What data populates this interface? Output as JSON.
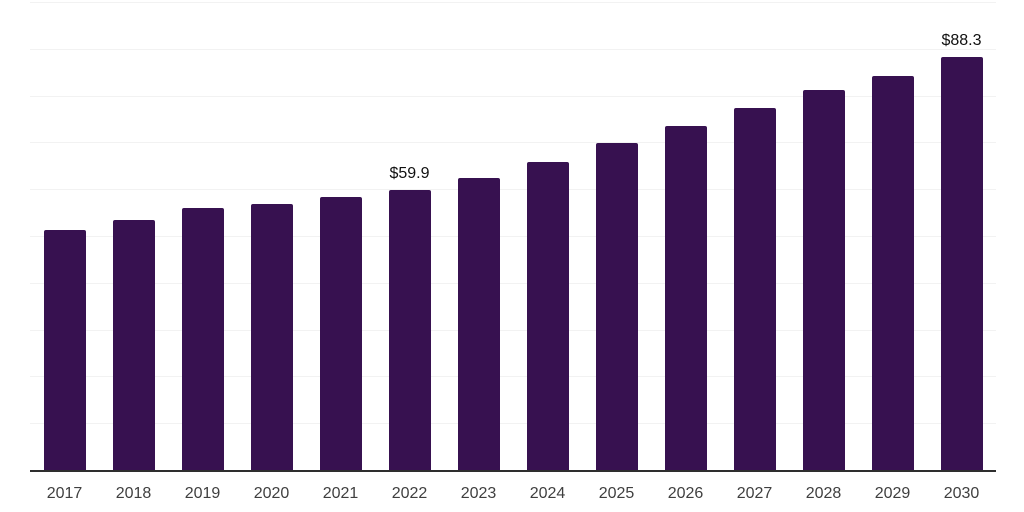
{
  "chart_data": {
    "type": "bar",
    "title": "",
    "xlabel": "",
    "ylabel": "",
    "categories": [
      "2017",
      "2018",
      "2019",
      "2020",
      "2021",
      "2022",
      "2023",
      "2024",
      "2025",
      "2026",
      "2027",
      "2028",
      "2029",
      "2030"
    ],
    "values": [
      51.2,
      53.5,
      55.9,
      56.9,
      58.3,
      59.9,
      62.5,
      65.9,
      69.8,
      73.6,
      77.4,
      81.1,
      84.1,
      88.3
    ],
    "data_labels": {
      "2022": "$59.9",
      "2030": "$88.3"
    },
    "ylim": [
      0,
      100
    ],
    "grid": true,
    "grid_step": 10,
    "legend": false,
    "bar_color": "#371150",
    "grid_color": "#f2f2f2",
    "axis_color": "#2e2e2e",
    "tick_label_color": "#3f3f3f",
    "data_label_color": "#101010",
    "background_color": "#ffffff"
  }
}
